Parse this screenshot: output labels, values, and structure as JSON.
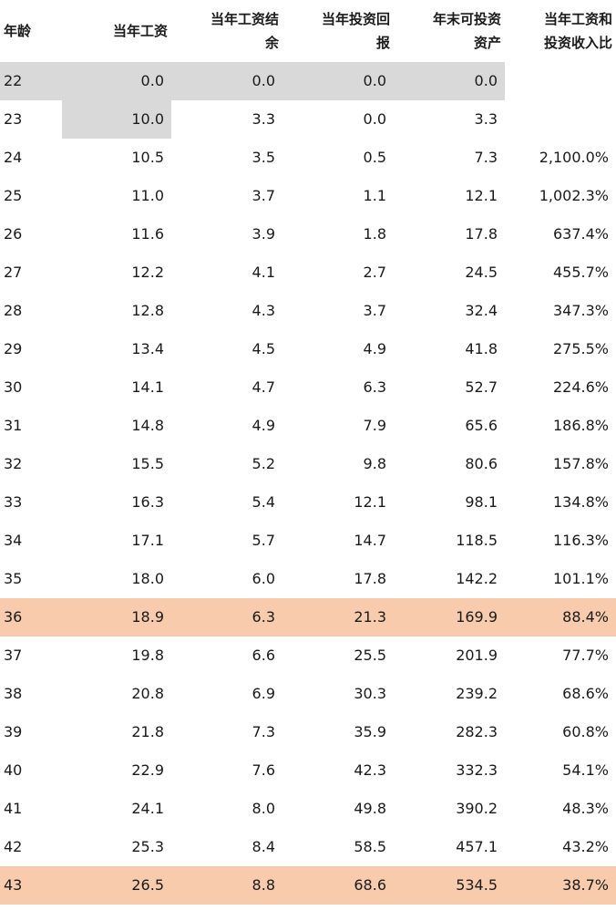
{
  "table": {
    "headers": [
      "年龄",
      "当年工资",
      "当年工资结余",
      "当年投资回报",
      "年末可投资资产",
      "当年工资和投资收入比"
    ],
    "header_lines": [
      [
        "年龄"
      ],
      [
        "当年工资"
      ],
      [
        "当年工资结",
        "余"
      ],
      [
        "当年投资回",
        "报"
      ],
      [
        "年末可投资",
        "资产"
      ],
      [
        "当年工资和",
        "投资收入比"
      ]
    ],
    "rows": [
      [
        "22",
        "0.0",
        "0.0",
        "0.0",
        "0.0",
        ""
      ],
      [
        "23",
        "10.0",
        "3.3",
        "0.0",
        "3.3",
        ""
      ],
      [
        "24",
        "10.5",
        "3.5",
        "0.5",
        "7.3",
        "2,100.0%"
      ],
      [
        "25",
        "11.0",
        "3.7",
        "1.1",
        "12.1",
        "1,002.3%"
      ],
      [
        "26",
        "11.6",
        "3.9",
        "1.8",
        "17.8",
        "637.4%"
      ],
      [
        "27",
        "12.2",
        "4.1",
        "2.7",
        "24.5",
        "455.7%"
      ],
      [
        "28",
        "12.8",
        "4.3",
        "3.7",
        "32.4",
        "347.3%"
      ],
      [
        "29",
        "13.4",
        "4.5",
        "4.9",
        "41.8",
        "275.5%"
      ],
      [
        "30",
        "14.1",
        "4.7",
        "6.3",
        "52.7",
        "224.6%"
      ],
      [
        "31",
        "14.8",
        "4.9",
        "7.9",
        "65.6",
        "186.8%"
      ],
      [
        "32",
        "15.5",
        "5.2",
        "9.8",
        "80.6",
        "157.8%"
      ],
      [
        "33",
        "16.3",
        "5.4",
        "12.1",
        "98.1",
        "134.8%"
      ],
      [
        "34",
        "17.1",
        "5.7",
        "14.7",
        "118.5",
        "116.3%"
      ],
      [
        "35",
        "18.0",
        "6.0",
        "17.8",
        "142.2",
        "101.1%"
      ],
      [
        "36",
        "18.9",
        "6.3",
        "21.3",
        "169.9",
        "88.4%"
      ],
      [
        "37",
        "19.8",
        "6.6",
        "25.5",
        "201.9",
        "77.7%"
      ],
      [
        "38",
        "20.8",
        "6.9",
        "30.3",
        "239.2",
        "68.6%"
      ],
      [
        "39",
        "21.8",
        "7.3",
        "35.9",
        "282.3",
        "60.8%"
      ],
      [
        "40",
        "22.9",
        "7.6",
        "42.3",
        "332.3",
        "54.1%"
      ],
      [
        "41",
        "24.1",
        "8.0",
        "49.8",
        "390.2",
        "48.3%"
      ],
      [
        "42",
        "25.3",
        "8.4",
        "58.5",
        "457.1",
        "43.2%"
      ],
      [
        "43",
        "26.5",
        "8.8",
        "68.6",
        "534.5",
        "38.7%"
      ]
    ],
    "highlight_rows": [
      14,
      21
    ],
    "gray_cells": [
      [
        0,
        0
      ],
      [
        0,
        1
      ],
      [
        0,
        2
      ],
      [
        0,
        3
      ],
      [
        0,
        4
      ],
      [
        1,
        1
      ]
    ],
    "colors": {
      "highlight": "#f8cbad",
      "gray": "#d9d9d9"
    }
  }
}
